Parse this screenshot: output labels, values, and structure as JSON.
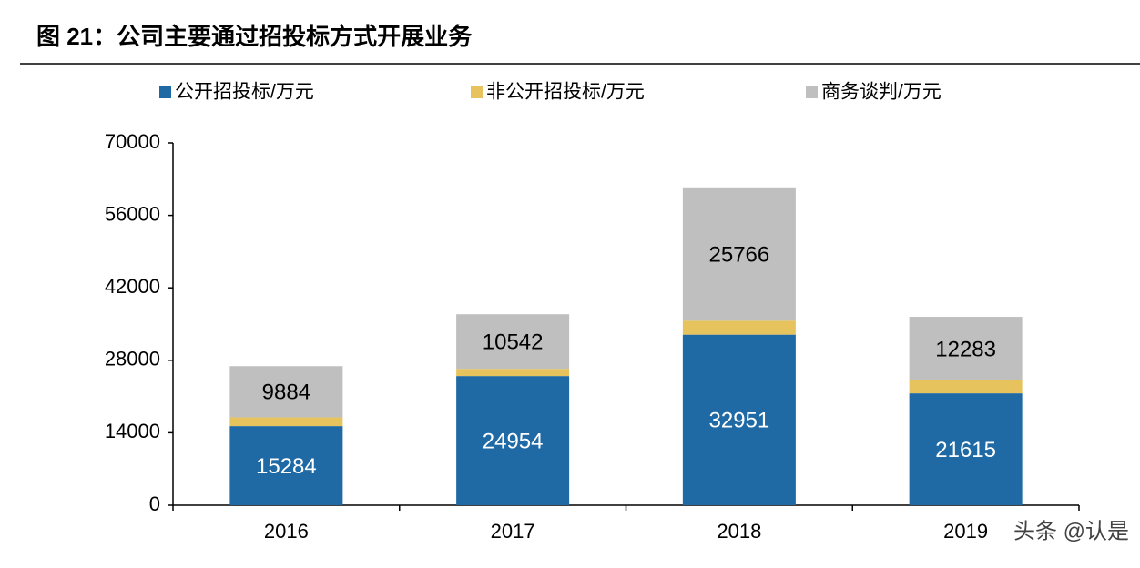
{
  "chart_data": {
    "type": "stacked-bar",
    "title": "图 21：公司主要通过招投标方式开展业务",
    "categories": [
      "2016",
      "2017",
      "2018",
      "2019"
    ],
    "series": [
      {
        "name": "公开招投标/万元",
        "color": "#1f6aa5",
        "values": [
          15284,
          24954,
          32951,
          21615
        ],
        "label_color": "#ffffff"
      },
      {
        "name": "非公开招投标/万元",
        "color": "#e6c35c",
        "values": [
          1700,
          1400,
          2700,
          2500
        ]
      },
      {
        "name": "商务谈判/万元",
        "color": "#bfbfbf",
        "values": [
          9884,
          10542,
          25766,
          12283
        ],
        "label_color": "#000000"
      }
    ],
    "ylim": [
      0,
      70000
    ],
    "yticks": [
      0,
      14000,
      28000,
      42000,
      56000,
      70000
    ],
    "watermark": "头条 @认是"
  }
}
